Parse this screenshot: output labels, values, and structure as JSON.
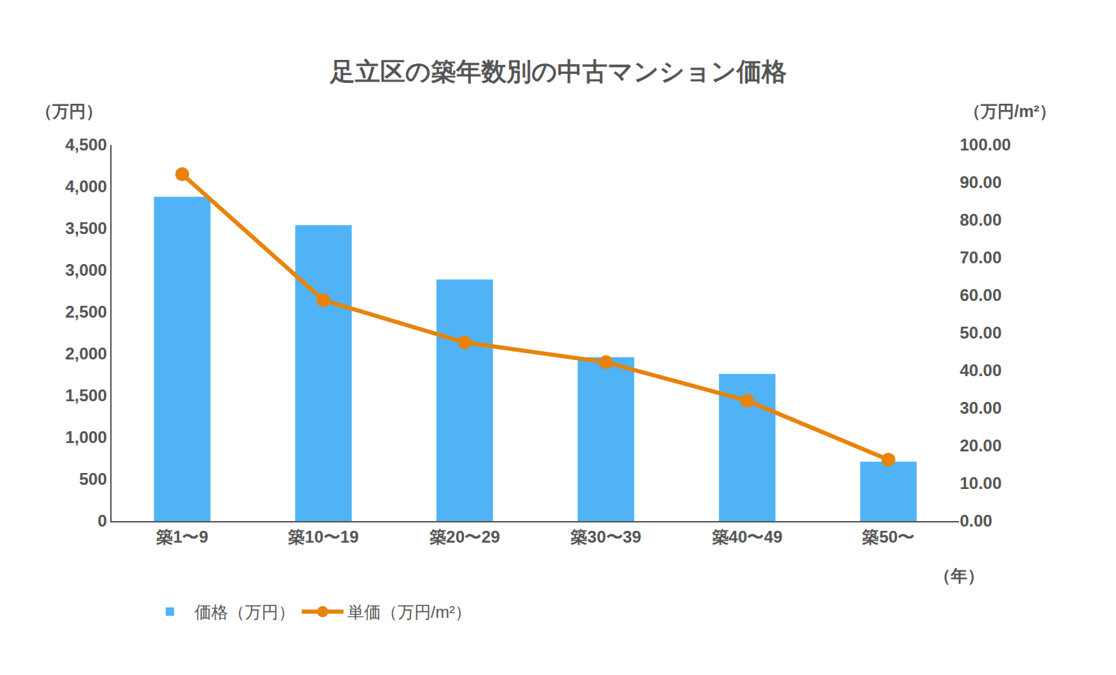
{
  "chart_data": {
    "type": "bar",
    "title": "足立区の築年数別の中古マンション価格",
    "y_label": "（万円）",
    "y2_label": "（万円/m²）",
    "x_label": "（年）",
    "categories": [
      "築1〜9",
      "築10〜19",
      "築20〜29",
      "築30〜39",
      "築40〜49",
      "築50〜"
    ],
    "series": [
      {
        "name": "価格（万円）",
        "type": "bar",
        "color": "#4fb3f5",
        "values": [
          3880,
          3540,
          2890,
          1960,
          1760,
          710
        ]
      },
      {
        "name": "単価（万円/m²）",
        "type": "line",
        "axis": "y2",
        "color": "#e8830c",
        "marker": "circle",
        "values": [
          92.2,
          58.7,
          47.5,
          42.2,
          32.0,
          16.3
        ]
      }
    ],
    "ylim": [
      0,
      4500
    ],
    "yticks": [
      0,
      500,
      {
        "value": 1000,
        "label": "1,000"
      },
      {
        "value": 1500,
        "label": "1,500"
      },
      {
        "value": 2000,
        "label": "2,000"
      },
      {
        "value": 2500,
        "label": "2,500"
      },
      {
        "value": 3000,
        "label": "3,000"
      },
      {
        "value": 3500,
        "label": "3,500"
      },
      {
        "value": 4000,
        "label": "4,000"
      },
      {
        "value": 4500,
        "label": "4,500"
      }
    ],
    "y2lim": [
      0,
      100
    ],
    "y2ticks": [
      {
        "value": 0,
        "label": "0.00"
      },
      {
        "value": 10,
        "label": "10.00"
      },
      {
        "value": 20,
        "label": "20.00"
      },
      {
        "value": 30,
        "label": "30.00"
      },
      {
        "value": 40,
        "label": "40.00"
      },
      {
        "value": 50,
        "label": "50.00"
      },
      {
        "value": 60,
        "label": "60.00"
      },
      {
        "value": 70,
        "label": "70.00"
      },
      {
        "value": 80,
        "label": "80.00"
      },
      {
        "value": 90,
        "label": "90.00"
      },
      {
        "value": 100,
        "label": "100.00"
      }
    ],
    "grid": false,
    "legend": "bottom left"
  }
}
